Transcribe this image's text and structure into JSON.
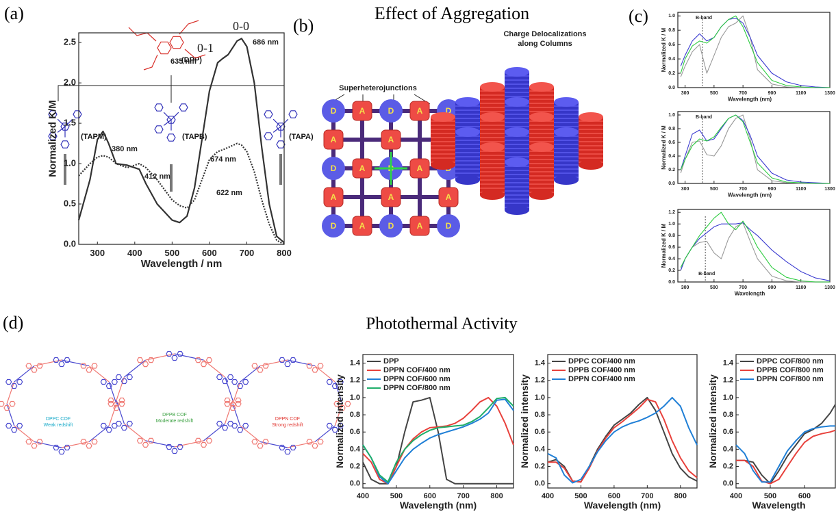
{
  "figure": {
    "panel_labels": [
      "(a)",
      "(b)",
      "(c)",
      "(d)"
    ],
    "titles": [
      "Effect of Aggregation",
      "Photothermal Activity"
    ],
    "b": {
      "left_title": "Superheterojunctions",
      "right_title_lines": [
        "Charge Delocalizations",
        "along Columns"
      ],
      "donor": "D",
      "acceptor": "A"
    },
    "d": {
      "core": "(DPP)",
      "linkers": [
        "(TAPM)",
        "(TAPB)",
        "(TAPA)"
      ],
      "cofs": [
        {
          "name": "DPPC COF",
          "note": "Weak redshift"
        },
        {
          "name": "DPPB COF",
          "note": "Moderate redshift"
        },
        {
          "name": "DPPN COF",
          "note": "Strong redshift"
        }
      ]
    }
  },
  "chart_data": [
    {
      "type": "line",
      "xlabel": "Wavelength / nm",
      "ylabel": "Normalized K/M",
      "xlim": [
        250,
        800
      ],
      "ylim": [
        0,
        2.62
      ],
      "xticks": [
        300,
        400,
        500,
        600,
        700,
        800
      ],
      "yticks": [
        {
          "value": 0,
          "label": "0.0"
        },
        0.5,
        {
          "value": 1,
          "label": "1.0"
        },
        1.5,
        {
          "value": 2,
          "label": "2.0"
        },
        2.5
      ],
      "x": [
        250,
        280,
        300,
        315,
        330,
        350,
        380,
        412,
        430,
        460,
        500,
        520,
        540,
        560,
        580,
        600,
        622,
        635,
        650,
        674,
        686,
        700,
        720,
        740,
        760,
        780,
        800
      ],
      "series": [
        {
          "color": "#333333",
          "dash": "solid",
          "values": [
            0.3,
            0.8,
            1.3,
            1.4,
            1.25,
            1.0,
            0.98,
            0.93,
            0.75,
            0.5,
            0.3,
            0.27,
            0.35,
            0.7,
            1.3,
            1.9,
            2.25,
            2.3,
            2.35,
            2.52,
            2.55,
            2.45,
            2.0,
            1.2,
            0.5,
            0.1,
            0.02
          ]
        },
        {
          "color": "#333333",
          "dash": "dotted",
          "values": [
            0.85,
            1.0,
            1.08,
            1.1,
            1.08,
            1.0,
            0.95,
            1.0,
            0.95,
            0.8,
            0.55,
            0.48,
            0.45,
            0.55,
            0.8,
            1.05,
            1.15,
            1.17,
            1.2,
            1.25,
            1.23,
            1.15,
            0.9,
            0.55,
            0.25,
            0.05,
            0
          ]
        }
      ],
      "annotations": [
        "0-0",
        "0-1",
        "686 nm",
        "635 nm",
        "380 nm",
        "412 nm",
        "674 nm",
        "622 nm"
      ]
    },
    {
      "type": "line",
      "xlabel": "Wavelength (nm)",
      "ylabel": "Normalized K / M",
      "xlim": [
        250,
        1300
      ],
      "ylim": [
        0,
        1.05
      ],
      "xticks": [
        300,
        500,
        700,
        900,
        1100,
        1300
      ],
      "yticks": [
        {
          "value": 0,
          "label": "0.0"
        },
        0.2,
        0.4,
        0.6,
        0.8,
        {
          "value": 1,
          "label": "1.0"
        }
      ],
      "vline": 420,
      "annotations": [
        "B-band"
      ],
      "x": [
        270,
        300,
        350,
        400,
        450,
        500,
        550,
        600,
        650,
        700,
        750,
        800,
        900,
        1000,
        1100,
        1200,
        1300
      ],
      "series": [
        {
          "color": "#999999",
          "values": [
            0.15,
            0.3,
            0.5,
            0.6,
            0.2,
            0.45,
            0.7,
            0.85,
            0.9,
            1.0,
            0.7,
            0.25,
            0.05,
            0.01,
            0,
            0,
            0
          ]
        },
        {
          "color": "#3a3ad0",
          "values": [
            0.3,
            0.45,
            0.65,
            0.75,
            0.65,
            0.7,
            0.85,
            0.95,
            0.97,
            0.9,
            0.7,
            0.45,
            0.2,
            0.08,
            0.03,
            0.01,
            0
          ]
        },
        {
          "color": "#2ecc40",
          "values": [
            0.2,
            0.4,
            0.58,
            0.65,
            0.62,
            0.7,
            0.85,
            0.95,
            1.0,
            0.85,
            0.6,
            0.35,
            0.1,
            0.03,
            0.01,
            0,
            0
          ]
        }
      ]
    },
    {
      "type": "line",
      "xlabel": "Wavelength (nm)",
      "ylabel": "Normalized K / M",
      "xlim": [
        250,
        1300
      ],
      "ylim": [
        0,
        1.05
      ],
      "xticks": [
        300,
        500,
        700,
        900,
        1100,
        1300
      ],
      "yticks": [
        {
          "value": 0,
          "label": "0.0"
        },
        0.2,
        0.4,
        0.6,
        0.8,
        {
          "value": 1,
          "label": "1.0"
        }
      ],
      "vline": 420,
      "annotations": [
        "B-band"
      ],
      "x": [
        270,
        300,
        350,
        400,
        450,
        500,
        550,
        600,
        650,
        700,
        750,
        800,
        900,
        1000,
        1100,
        1200,
        1300
      ],
      "series": [
        {
          "color": "#999999",
          "values": [
            0.15,
            0.35,
            0.6,
            0.62,
            0.42,
            0.4,
            0.55,
            0.8,
            0.95,
            1.0,
            0.65,
            0.2,
            0.04,
            0.01,
            0,
            0,
            0
          ]
        },
        {
          "color": "#3a3ad0",
          "values": [
            0.2,
            0.4,
            0.72,
            0.78,
            0.62,
            0.65,
            0.8,
            0.95,
            1.0,
            0.92,
            0.7,
            0.4,
            0.15,
            0.05,
            0.02,
            0.01,
            0
          ]
        },
        {
          "color": "#2ecc40",
          "values": [
            0.2,
            0.35,
            0.55,
            0.65,
            0.62,
            0.68,
            0.82,
            0.95,
            1.0,
            0.9,
            0.6,
            0.3,
            0.08,
            0.02,
            0.01,
            0,
            0
          ]
        }
      ]
    },
    {
      "type": "line",
      "xlabel": "Wavelength",
      "ylabel": "Normalized K / M",
      "xlim": [
        250,
        1300
      ],
      "ylim": [
        0,
        1.25
      ],
      "xticks": [
        300,
        500,
        700,
        900,
        1100,
        1300
      ],
      "yticks": [
        {
          "value": 0,
          "label": "0.0"
        },
        0.2,
        0.4,
        0.6,
        0.8,
        {
          "value": 1,
          "label": "1.0"
        },
        1.2
      ],
      "vline": 440,
      "annotations": [
        "B-band"
      ],
      "x": [
        270,
        300,
        350,
        400,
        450,
        500,
        550,
        600,
        650,
        700,
        750,
        800,
        900,
        1000,
        1100,
        1200,
        1300
      ],
      "series": [
        {
          "color": "#999999",
          "values": [
            0.2,
            0.4,
            0.6,
            0.68,
            0.7,
            0.5,
            0.4,
            0.75,
            0.95,
            1.02,
            0.7,
            0.4,
            0.1,
            0.02,
            0,
            0,
            0
          ]
        },
        {
          "color": "#3a3ad0",
          "values": [
            0.2,
            0.4,
            0.6,
            0.75,
            0.85,
            0.95,
            1.0,
            1.0,
            1.0,
            1.02,
            0.9,
            0.8,
            0.55,
            0.35,
            0.18,
            0.07,
            0.02
          ]
        },
        {
          "color": "#2ecc40",
          "values": [
            0.25,
            0.4,
            0.6,
            0.8,
            0.95,
            1.1,
            1.2,
            1.0,
            0.9,
            1.05,
            0.85,
            0.6,
            0.25,
            0.08,
            0.02,
            0,
            0
          ]
        }
      ]
    },
    {
      "type": "line",
      "xlabel": "Wavelength (nm)",
      "ylabel": "Normalized intensity",
      "legend": "upper left",
      "xlim": [
        400,
        850
      ],
      "ylim": [
        -0.05,
        1.5
      ],
      "xticks": [
        400,
        500,
        600,
        700,
        800
      ],
      "yticks": [
        {
          "value": 0,
          "label": "0.0"
        },
        0.2,
        0.4,
        0.6,
        0.8,
        {
          "value": 1,
          "label": "1.0"
        },
        1.2,
        1.4
      ],
      "x": [
        400,
        425,
        450,
        475,
        500,
        525,
        550,
        575,
        600,
        625,
        650,
        675,
        700,
        725,
        750,
        775,
        800,
        825,
        850
      ],
      "series": [
        {
          "name": "DPP",
          "color": "#444444",
          "values": [
            0.25,
            0.05,
            0,
            0,
            0.2,
            0.6,
            0.95,
            0.97,
            1.0,
            0.6,
            0.05,
            0,
            0,
            0,
            0,
            0,
            0,
            0,
            0
          ]
        },
        {
          "name": "DPPN COF/400 nm",
          "color": "#e8413c",
          "values": [
            0.35,
            0.25,
            0.05,
            0,
            0.2,
            0.4,
            0.52,
            0.6,
            0.65,
            0.66,
            0.67,
            0.7,
            0.76,
            0.85,
            0.95,
            1.0,
            0.9,
            0.7,
            0.45
          ]
        },
        {
          "name": "DPPN COF/600 nm",
          "color": "#1f7fd6",
          "values": [
            0.45,
            0.3,
            0.08,
            0,
            0.15,
            0.3,
            0.4,
            0.47,
            0.53,
            0.57,
            0.6,
            0.63,
            0.66,
            0.7,
            0.75,
            0.82,
            0.97,
            0.98,
            0.85
          ]
        },
        {
          "name": "DPPN COF/800 nm",
          "color": "#1fae6a",
          "values": [
            0.45,
            0.3,
            0.1,
            0.02,
            0.25,
            0.4,
            0.5,
            0.57,
            0.62,
            0.65,
            0.66,
            0.67,
            0.68,
            0.72,
            0.78,
            0.88,
            0.99,
            1.0,
            0.9
          ]
        }
      ]
    },
    {
      "type": "line",
      "xlabel": "Wavelength (nm)",
      "ylabel": "Normalized intensity",
      "legend": "upper left",
      "xlim": [
        400,
        850
      ],
      "ylim": [
        -0.05,
        1.5
      ],
      "xticks": [
        400,
        500,
        600,
        700,
        800
      ],
      "yticks": [
        {
          "value": 0,
          "label": "0.0"
        },
        0.2,
        0.4,
        0.6,
        0.8,
        {
          "value": 1,
          "label": "1.0"
        },
        1.2,
        1.4
      ],
      "x": [
        400,
        425,
        450,
        475,
        500,
        525,
        550,
        575,
        600,
        625,
        650,
        675,
        700,
        725,
        750,
        775,
        800,
        825,
        850
      ],
      "series": [
        {
          "name": "DPPC COF/400 nm",
          "color": "#444444",
          "values": [
            0.25,
            0.28,
            0.2,
            0.03,
            0.02,
            0.2,
            0.4,
            0.55,
            0.68,
            0.75,
            0.82,
            0.92,
            1.0,
            0.85,
            0.6,
            0.35,
            0.18,
            0.08,
            0.03
          ]
        },
        {
          "name": "DPPB COF/400 nm",
          "color": "#e8413c",
          "values": [
            0.25,
            0.25,
            0.18,
            0.03,
            0.02,
            0.18,
            0.38,
            0.53,
            0.65,
            0.72,
            0.8,
            0.88,
            0.98,
            0.95,
            0.75,
            0.5,
            0.3,
            0.15,
            0.07
          ]
        },
        {
          "name": "DPPN COF/400 nm",
          "color": "#1f7fd6",
          "values": [
            0.35,
            0.3,
            0.1,
            0.01,
            0.05,
            0.2,
            0.37,
            0.5,
            0.6,
            0.66,
            0.7,
            0.73,
            0.77,
            0.82,
            0.9,
            1.0,
            0.9,
            0.65,
            0.45
          ]
        }
      ]
    },
    {
      "type": "line",
      "xlabel": "Wavelength",
      "ylabel": "Normalized intensity",
      "legend": "upper left",
      "xlim": [
        400,
        690
      ],
      "ylim": [
        -0.05,
        1.5
      ],
      "xticks": [
        400,
        500,
        600
      ],
      "yticks": [
        {
          "value": 0,
          "label": "0.0"
        },
        0.2,
        0.4,
        0.6,
        0.8,
        {
          "value": 1,
          "label": "1.0"
        },
        1.2,
        1.4
      ],
      "x": [
        400,
        425,
        450,
        475,
        500,
        525,
        550,
        575,
        600,
        625,
        650,
        675,
        690
      ],
      "series": [
        {
          "name": "DPPC COF/800 nm",
          "color": "#444444",
          "values": [
            0.27,
            0.27,
            0.25,
            0.1,
            0,
            0.15,
            0.32,
            0.45,
            0.58,
            0.63,
            0.7,
            0.82,
            0.92
          ]
        },
        {
          "name": "DPPB COF/800 nm",
          "color": "#e8413c",
          "values": [
            0.27,
            0.27,
            0.2,
            0.03,
            0,
            0.05,
            0.2,
            0.35,
            0.48,
            0.55,
            0.58,
            0.6,
            0.62
          ]
        },
        {
          "name": "DPPN COF/800 nm",
          "color": "#1f7fd6",
          "values": [
            0.45,
            0.35,
            0.15,
            0.02,
            0.02,
            0.2,
            0.38,
            0.5,
            0.6,
            0.64,
            0.66,
            0.67,
            0.67
          ]
        }
      ]
    }
  ]
}
